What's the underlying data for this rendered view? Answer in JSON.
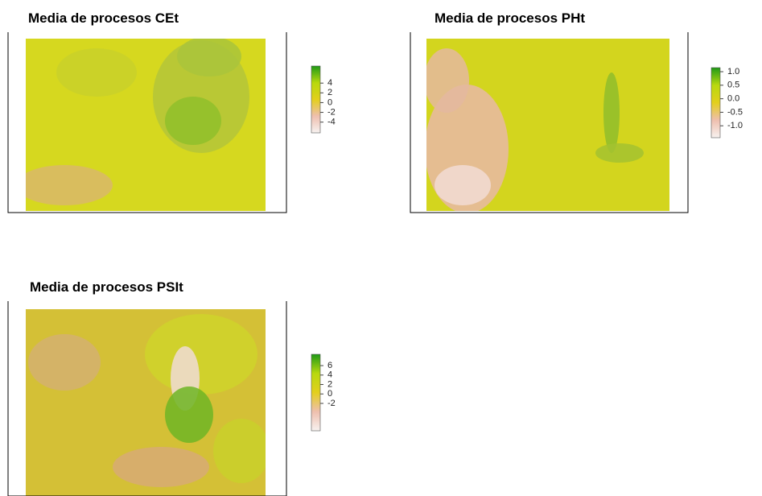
{
  "chart_data": [
    {
      "type": "raster",
      "title": "Media de procesos CEt",
      "zlim": [
        -6.2,
        7.5
      ],
      "zticks": [
        4,
        2,
        0,
        -2,
        -4
      ],
      "colors": [
        "#f7f2f0",
        "#eebfae",
        "#e3cf1c",
        "#b8d90e",
        "#1f9a17"
      ]
    },
    {
      "type": "raster",
      "title": "Media de procesos PHt",
      "zlim": [
        -1.44,
        1.15
      ],
      "zticks": [
        {
          "value": 1,
          "label": "1.0"
        },
        {
          "value": 0.5,
          "label": "0.5"
        },
        {
          "value": 0,
          "label": "0.0"
        },
        {
          "value": -0.5,
          "label": "-0.5"
        },
        {
          "value": -1,
          "label": "-1.0"
        }
      ],
      "colors": [
        "#f7f2f0",
        "#eebfae",
        "#e3cf1c",
        "#b8d90e",
        "#1f9a17"
      ]
    },
    {
      "type": "raster",
      "title": "Media de procesos PSIt",
      "zlim": [
        -7.8,
        8.4
      ],
      "zticks": [
        6,
        4,
        2,
        0,
        -2
      ],
      "colors": [
        "#f7f2f0",
        "#eebfae",
        "#e3cf1c",
        "#b8d90e",
        "#1f9a17"
      ]
    }
  ]
}
